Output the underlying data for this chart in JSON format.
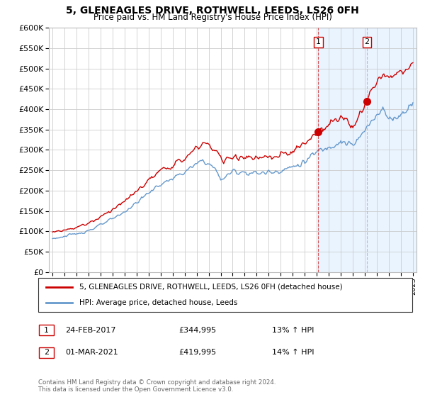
{
  "title": "5, GLENEAGLES DRIVE, ROTHWELL, LEEDS, LS26 0FH",
  "subtitle": "Price paid vs. HM Land Registry's House Price Index (HPI)",
  "ylim": [
    0,
    600000
  ],
  "yticks": [
    0,
    50000,
    100000,
    150000,
    200000,
    250000,
    300000,
    350000,
    400000,
    450000,
    500000,
    550000,
    600000
  ],
  "x_start_year": 1995,
  "x_end_year": 2025,
  "marker1_year": 2017.12,
  "marker2_year": 2021.17,
  "marker1_value": 344995,
  "marker2_value": 419995,
  "marker1_label": "1",
  "marker2_label": "2",
  "marker1_date": "24-FEB-2017",
  "marker2_date": "01-MAR-2021",
  "marker1_pct": "13% ↑ HPI",
  "marker2_pct": "14% ↑ HPI",
  "legend_house": "5, GLENEAGLES DRIVE, ROTHWELL, LEEDS, LS26 0FH (detached house)",
  "legend_hpi": "HPI: Average price, detached house, Leeds",
  "footnote": "Contains HM Land Registry data © Crown copyright and database right 2024.\nThis data is licensed under the Open Government Licence v3.0.",
  "line_color_house": "#cc0000",
  "line_color_hpi": "#6699cc",
  "background_shaded_color": "#ddeeff",
  "dashed1_color": "#cc3333",
  "dashed2_color": "#aaaacc",
  "grid_color": "#cccccc",
  "box_color": "#cc0000",
  "dot_color": "#cc0000"
}
